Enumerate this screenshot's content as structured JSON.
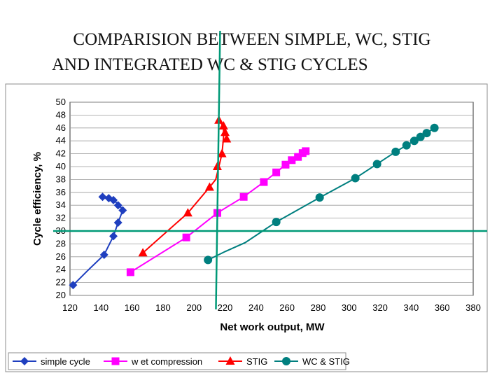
{
  "slide": {
    "title_line1": "COMPARISION BETWEEN SIMPLE, WC, STIG",
    "title_line2": "AND INTEGRATED WC & STIG CYCLES"
  },
  "chart_data": {
    "type": "line",
    "title": "",
    "xlabel": "Net work output, MW",
    "ylabel": "Cycle efficiency, %",
    "xlim": [
      120,
      380
    ],
    "ylim": [
      20,
      50
    ],
    "xticks": [
      120,
      140,
      160,
      180,
      200,
      220,
      240,
      260,
      280,
      300,
      320,
      340,
      360,
      380
    ],
    "yticks": [
      20,
      22,
      24,
      26,
      28,
      30,
      32,
      34,
      36,
      38,
      40,
      42,
      44,
      46,
      48,
      50
    ],
    "grid": true,
    "legend_position": "bottom",
    "reference_lines": {
      "vertical_x": 215,
      "horizontal_y": 30,
      "color": "#009977"
    },
    "series": [
      {
        "name": "simple cycle",
        "color": "#1f3fbf",
        "marker": "diamond",
        "line": [
          [
            122,
            21.6
          ],
          [
            132,
            24.0
          ],
          [
            142,
            26.3
          ],
          [
            148,
            29.2
          ],
          [
            151,
            31.3
          ],
          [
            154,
            33.2
          ],
          [
            152,
            34.0
          ],
          [
            148,
            34.8
          ],
          [
            144,
            35.2
          ],
          [
            141,
            35.3
          ]
        ],
        "points": [
          [
            122,
            21.6
          ],
          [
            142,
            26.3
          ],
          [
            148,
            29.2
          ],
          [
            151,
            31.3
          ],
          [
            154,
            33.2
          ],
          [
            151,
            34.0
          ],
          [
            148,
            34.8
          ],
          [
            145,
            35.1
          ],
          [
            141,
            35.3
          ]
        ]
      },
      {
        "name": "w et compression",
        "color": "#ff00ff",
        "marker": "square",
        "line": [
          [
            159,
            23.6
          ],
          [
            195,
            29.0
          ],
          [
            215,
            32.8
          ],
          [
            232,
            35.3
          ],
          [
            245,
            37.6
          ],
          [
            253,
            39.1
          ],
          [
            259,
            40.3
          ],
          [
            263,
            41.0
          ],
          [
            267,
            41.5
          ],
          [
            270,
            42.1
          ],
          [
            272,
            42.4
          ]
        ],
        "points": [
          [
            159,
            23.6
          ],
          [
            195,
            29.0
          ],
          [
            215,
            32.8
          ],
          [
            232,
            35.3
          ],
          [
            245,
            37.6
          ],
          [
            253,
            39.1
          ],
          [
            259,
            40.3
          ],
          [
            263,
            41.0
          ],
          [
            267,
            41.5
          ],
          [
            270,
            42.1
          ],
          [
            272,
            42.4
          ]
        ]
      },
      {
        "name": "STIG",
        "color": "#ff0000",
        "marker": "triangle",
        "line": [
          [
            167,
            26.6
          ],
          [
            196,
            32.8
          ],
          [
            210,
            36.8
          ],
          [
            214,
            38.0
          ],
          [
            216,
            40.0
          ],
          [
            218,
            42.0
          ],
          [
            219,
            44.5
          ],
          [
            219,
            46.2
          ],
          [
            216,
            47.2
          ]
        ],
        "points": [
          [
            167,
            26.6
          ],
          [
            196,
            32.8
          ],
          [
            210,
            36.8
          ],
          [
            215,
            40.0
          ],
          [
            218,
            42.0
          ],
          [
            221,
            44.3
          ],
          [
            220,
            45.3
          ],
          [
            219,
            46.3
          ],
          [
            216,
            47.2
          ]
        ]
      },
      {
        "name": "WC & STIG",
        "color": "#007f7f",
        "marker": "circle",
        "line": [
          [
            209,
            25.5
          ],
          [
            220,
            26.8
          ],
          [
            233,
            28.2
          ],
          [
            253,
            31.4
          ],
          [
            281,
            35.2
          ],
          [
            304,
            38.2
          ],
          [
            318,
            40.4
          ],
          [
            330,
            42.3
          ],
          [
            337,
            43.3
          ],
          [
            342,
            44.0
          ],
          [
            346,
            44.6
          ],
          [
            350,
            45.2
          ],
          [
            355,
            46.0
          ]
        ],
        "points": [
          [
            209,
            25.5
          ],
          [
            253,
            31.4
          ],
          [
            281,
            35.2
          ],
          [
            304,
            38.2
          ],
          [
            318,
            40.4
          ],
          [
            330,
            42.3
          ],
          [
            337,
            43.3
          ],
          [
            342,
            44.0
          ],
          [
            346,
            44.6
          ],
          [
            350,
            45.2
          ],
          [
            355,
            46.0
          ]
        ]
      }
    ]
  }
}
